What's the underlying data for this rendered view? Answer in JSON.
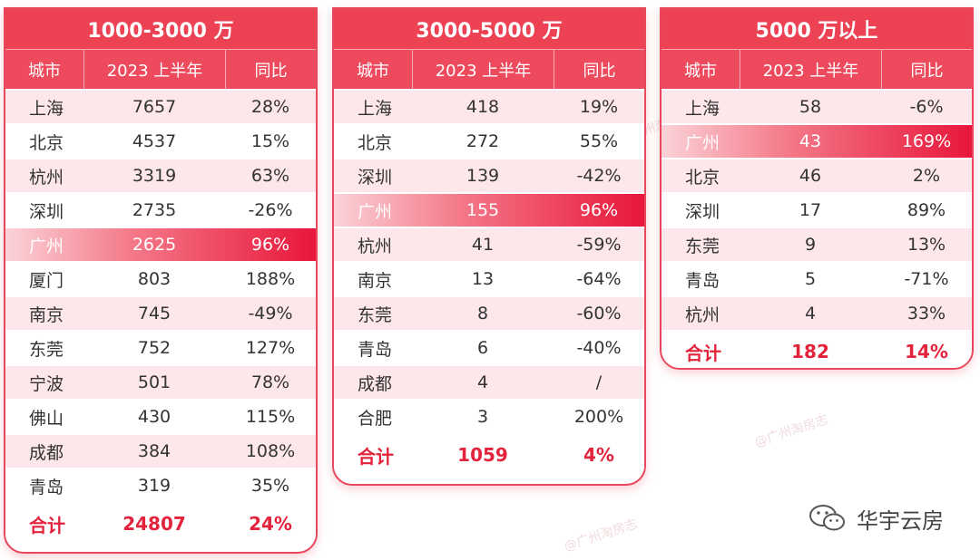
{
  "header": {
    "city": "城市",
    "period": "2023 上半年",
    "yoy": "同比"
  },
  "total_label": "合计",
  "panels": [
    {
      "title": "1000-3000 万",
      "rows": [
        {
          "city": "上海",
          "value": "7657",
          "yoy": "28%"
        },
        {
          "city": "北京",
          "value": "4537",
          "yoy": "15%"
        },
        {
          "city": "杭州",
          "value": "3319",
          "yoy": "63%"
        },
        {
          "city": "深圳",
          "value": "2735",
          "yoy": "-26%"
        },
        {
          "city": "广州",
          "value": "2625",
          "yoy": "96%",
          "highlight": true
        },
        {
          "city": "厦门",
          "value": "803",
          "yoy": "188%"
        },
        {
          "city": "南京",
          "value": "745",
          "yoy": "-49%"
        },
        {
          "city": "东莞",
          "value": "752",
          "yoy": "127%"
        },
        {
          "city": "宁波",
          "value": "501",
          "yoy": "78%"
        },
        {
          "city": "佛山",
          "value": "430",
          "yoy": "115%"
        },
        {
          "city": "成都",
          "value": "384",
          "yoy": "108%"
        },
        {
          "city": "青岛",
          "value": "319",
          "yoy": "35%"
        }
      ],
      "total": {
        "value": "24807",
        "yoy": "24%"
      }
    },
    {
      "title": "3000-5000 万",
      "rows": [
        {
          "city": "上海",
          "value": "418",
          "yoy": "19%"
        },
        {
          "city": "北京",
          "value": "272",
          "yoy": "55%"
        },
        {
          "city": "深圳",
          "value": "139",
          "yoy": "-42%"
        },
        {
          "city": "广州",
          "value": "155",
          "yoy": "96%",
          "highlight": true
        },
        {
          "city": "杭州",
          "value": "41",
          "yoy": "-59%"
        },
        {
          "city": "南京",
          "value": "13",
          "yoy": "-64%"
        },
        {
          "city": "东莞",
          "value": "8",
          "yoy": "-60%"
        },
        {
          "city": "青岛",
          "value": "6",
          "yoy": "-40%"
        },
        {
          "city": "成都",
          "value": "4",
          "yoy": "/"
        },
        {
          "city": "合肥",
          "value": "3",
          "yoy": "200%"
        }
      ],
      "total": {
        "value": "1059",
        "yoy": "4%"
      }
    },
    {
      "title": "5000 万以上",
      "rows": [
        {
          "city": "上海",
          "value": "58",
          "yoy": "-6%"
        },
        {
          "city": "广州",
          "value": "43",
          "yoy": "169%",
          "highlight": true
        },
        {
          "city": "北京",
          "value": "46",
          "yoy": "2%"
        },
        {
          "city": "深圳",
          "value": "17",
          "yoy": "89%"
        },
        {
          "city": "东莞",
          "value": "9",
          "yoy": "13%"
        },
        {
          "city": "青岛",
          "value": "5",
          "yoy": "-71%"
        },
        {
          "city": "杭州",
          "value": "4",
          "yoy": "33%"
        }
      ],
      "total": {
        "value": "182",
        "yoy": "14%"
      }
    }
  ],
  "watermark": "@广州淘房志",
  "brand": {
    "name": "华宇云房",
    "icon": "wechat-icon"
  },
  "colors": {
    "accent": "#ed4154",
    "highlight": "#e8163a",
    "total_text": "#e3233c",
    "row_tint": "#fde7ea"
  }
}
